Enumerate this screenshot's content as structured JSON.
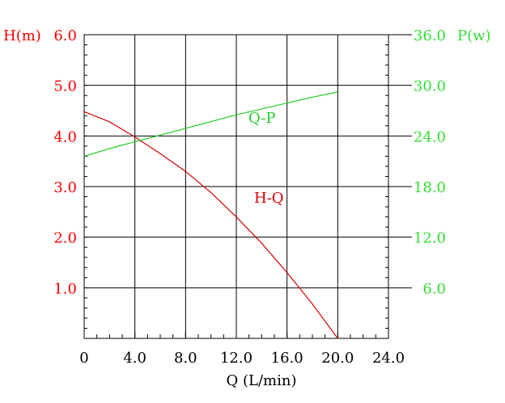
{
  "colors": {
    "grid": "#000000",
    "left_axis": "#ff0000",
    "right_axis": "#33dd33",
    "hq_line": "#d40000",
    "qp_line": "#22cc22"
  },
  "chart_data": {
    "type": "line",
    "x_axis": {
      "label": "Q (L/min)",
      "range": [
        0,
        24
      ],
      "ticks": [
        "0",
        "4.0",
        "8.0",
        "12.0",
        "16.0",
        "20.0",
        "24.0"
      ],
      "tick_values": [
        0,
        4,
        8,
        12,
        16,
        20,
        24
      ]
    },
    "y_left": {
      "label": "H(m)",
      "range": [
        0,
        6
      ],
      "ticks": [
        "1.0",
        "2.0",
        "3.0",
        "4.0",
        "5.0",
        "6.0"
      ],
      "tick_values": [
        1,
        2,
        3,
        4,
        5,
        6
      ]
    },
    "y_right": {
      "label": "P(w)",
      "range": [
        0,
        36
      ],
      "ticks": [
        "6.0",
        "12.0",
        "18.0",
        "24.0",
        "30.0",
        "36.0"
      ],
      "tick_values": [
        6,
        12,
        18,
        24,
        30,
        36
      ]
    },
    "grid": true,
    "series": [
      {
        "name": "H-Q",
        "axis": "left",
        "x": [
          0,
          2,
          4,
          6,
          8,
          10,
          12,
          14,
          16,
          18,
          20
        ],
        "y": [
          4.48,
          4.28,
          3.98,
          3.65,
          3.3,
          2.88,
          2.4,
          1.88,
          1.3,
          0.68,
          0.0
        ]
      },
      {
        "name": "Q-P",
        "axis": "right",
        "x": [
          0,
          2,
          4,
          6,
          8,
          10,
          12,
          14,
          16,
          18,
          20
        ],
        "y": [
          21.6,
          22.5,
          23.3,
          24.1,
          24.9,
          25.7,
          26.5,
          27.2,
          27.9,
          28.6,
          29.2
        ]
      }
    ]
  }
}
